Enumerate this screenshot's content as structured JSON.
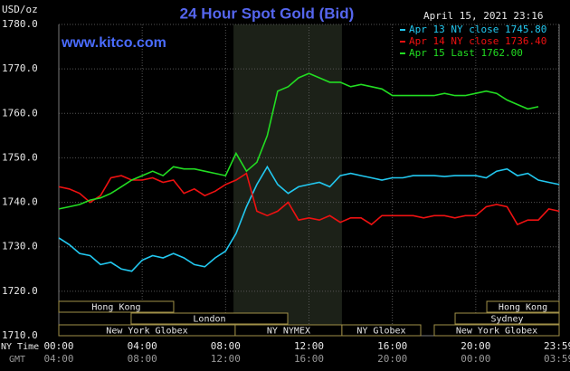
{
  "chart_data": {
    "type": "line",
    "title": "24 Hour Spot Gold (Bid)",
    "site": "www.kitco.com",
    "y_unit": "USD/oz",
    "timestamp": "April 15, 2021 23:16",
    "x_row_labels": [
      "NY Time",
      "GMT"
    ],
    "x": [
      0,
      0.5,
      1,
      1.5,
      2,
      2.5,
      3,
      3.5,
      4,
      4.5,
      5,
      5.5,
      6,
      6.5,
      7,
      7.5,
      8,
      8.5,
      9,
      9.5,
      10,
      10.5,
      11,
      11.5,
      12,
      12.5,
      13,
      13.5,
      14,
      14.5,
      15,
      15.5,
      16,
      16.5,
      17,
      17.5,
      18,
      18.5,
      19,
      19.5,
      20,
      20.5,
      21,
      21.5,
      22,
      22.5,
      23,
      23.5,
      24
    ],
    "series": [
      {
        "name": "Apr 13 NY close 1745.80",
        "color": "#22c8f0",
        "values": [
          1732,
          1730.5,
          1728.5,
          1728,
          1726,
          1726.5,
          1725,
          1724.5,
          1727,
          1728,
          1727.5,
          1728.5,
          1727.5,
          1726,
          1725.5,
          1727.5,
          1729,
          1733,
          1739,
          1744,
          1748,
          1744,
          1742,
          1743.5,
          1744,
          1744.5,
          1743.5,
          1746,
          1746.5,
          1746,
          1745.5,
          1745,
          1745.5,
          1745.5,
          1746,
          1746,
          1746,
          1745.8,
          1746,
          1746,
          1746,
          1745.5,
          1747,
          1747.5,
          1746,
          1746.5,
          1745,
          1744.5,
          1744
        ]
      },
      {
        "name": "Apr 14 NY close 1736.40",
        "color": "#ee1111",
        "values": [
          1743.5,
          1743,
          1742,
          1740,
          1741.5,
          1745.5,
          1746,
          1745,
          1745,
          1745.5,
          1744.5,
          1745,
          1742,
          1743,
          1741.5,
          1742.5,
          1744,
          1745,
          1746.5,
          1738,
          1737,
          1738,
          1740,
          1736,
          1736.5,
          1736,
          1737,
          1735.5,
          1736.5,
          1736.5,
          1735,
          1737,
          1737,
          1737,
          1737,
          1736.5,
          1737,
          1737,
          1736.5,
          1737,
          1737,
          1739,
          1739.5,
          1739,
          1735,
          1736,
          1736,
          1738.5,
          1738
        ]
      },
      {
        "name": "Apr 15 Last 1762.00",
        "color": "#22dd22",
        "values": [
          1738.5,
          1739,
          1739.5,
          1740.5,
          1741,
          1742,
          1743.5,
          1745,
          1746,
          1747,
          1746,
          1748,
          1747.5,
          1747.5,
          1747,
          1746.5,
          1746,
          1751,
          1747,
          1749,
          1755,
          1765,
          1766,
          1768,
          1769,
          1768,
          1767,
          1767,
          1766,
          1766.5,
          1766,
          1765.5,
          1764,
          1764,
          1764,
          1764,
          1764,
          1764.5,
          1764,
          1764,
          1764.5,
          1765,
          1764.5,
          1763,
          1762,
          1761,
          1761.5,
          null,
          null
        ]
      }
    ],
    "xlim": [
      0,
      24
    ],
    "ylim": [
      1710,
      1780
    ],
    "xticks": [
      {
        "value": 0,
        "label": "00:00"
      },
      {
        "value": 4,
        "label": "04:00"
      },
      {
        "value": 8,
        "label": "08:00"
      },
      {
        "value": 12,
        "label": "12:00"
      },
      {
        "value": 16,
        "label": "16:00"
      },
      {
        "value": 20,
        "label": "20:00"
      },
      {
        "value": 23.98,
        "label": "23:59"
      }
    ],
    "gmt_labels": [
      "04:00",
      "08:00",
      "12:00",
      "16:00",
      "20:00",
      "00:00",
      "03:59"
    ],
    "yticks": [
      {
        "value": 1710,
        "label": "1710.0"
      },
      {
        "value": 1720,
        "label": "1720.0"
      },
      {
        "value": 1730,
        "label": "1730.0"
      },
      {
        "value": 1740,
        "label": "1740.0"
      },
      {
        "value": 1750,
        "label": "1750.0"
      },
      {
        "value": 1760,
        "label": "1760.0"
      },
      {
        "value": 1770,
        "label": "1770.0"
      },
      {
        "value": 1780,
        "label": "1780.0"
      }
    ],
    "grid": true,
    "highlight_x": [
      8.38,
      13.58
    ],
    "session_rows": [
      [
        {
          "name": "Hong Kong",
          "start": 0,
          "end": 5.51
        },
        {
          "name": "Hong Kong",
          "start": 20.53,
          "end": 24
        }
      ],
      [
        {
          "name": "London",
          "start": 3.47,
          "end": 10.98
        },
        {
          "name": "Sydney",
          "start": 19.01,
          "end": 24
        }
      ],
      [
        {
          "name": "New York Globex",
          "start": 0,
          "end": 8.46
        },
        {
          "name": "NY NYMEX",
          "start": 8.46,
          "end": 13.58
        },
        {
          "name": "NY Globex",
          "start": 13.58,
          "end": 17.36
        },
        {
          "name": "New York Globex",
          "start": 18.01,
          "end": 24
        }
      ]
    ]
  }
}
